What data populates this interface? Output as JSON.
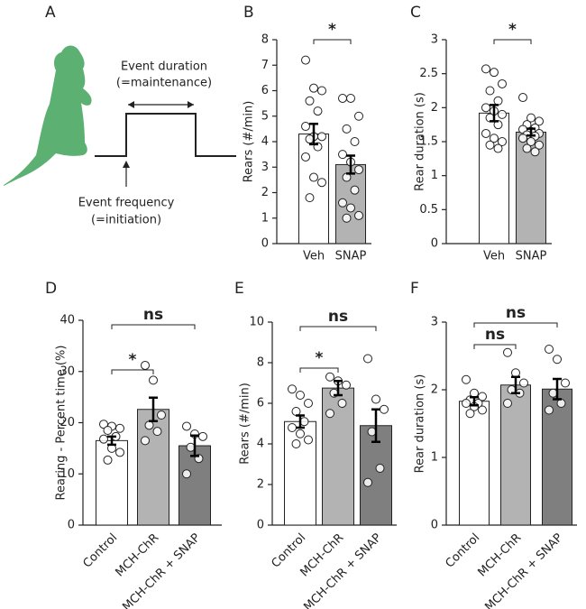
{
  "diagram": {
    "label": "A",
    "duration": "Event duration",
    "duration_note": "(=maintenance)",
    "frequency": "Event frequency",
    "frequency_note": "(=initiation)"
  },
  "chart_data": [
    {
      "type": "bar",
      "panel": "B",
      "ylabel": "Rears  (#/min)",
      "categories": [
        "Veh",
        "SNAP"
      ],
      "values": [
        4.3,
        3.1
      ],
      "errors": [
        0.4,
        0.35
      ],
      "colors": [
        "#ffffff",
        "#b3b3b3"
      ],
      "points": [
        [
          7.2,
          6.1,
          6.0,
          5.6,
          5.2,
          4.6,
          4.2,
          4.2,
          4.1,
          3.8,
          3.4,
          2.6,
          2.4,
          1.8
        ],
        [
          5.7,
          5.7,
          5.0,
          4.5,
          4.0,
          3.5,
          3.2,
          2.9,
          2.6,
          2.1,
          1.6,
          1.4,
          1.1,
          1.0
        ]
      ],
      "ylim": [
        0,
        8
      ],
      "yticks": [
        0,
        1,
        2,
        3,
        4,
        5,
        6,
        7,
        8
      ],
      "significance": [
        {
          "from": 0,
          "to": 1,
          "label": "*"
        }
      ]
    },
    {
      "type": "bar",
      "panel": "C",
      "ylabel": "Rear duration (s)",
      "categories": [
        "Veh",
        "SNAP"
      ],
      "values": [
        1.92,
        1.64
      ],
      "errors": [
        0.12,
        0.05
      ],
      "colors": [
        "#ffffff",
        "#b3b3b3"
      ],
      "points": [
        [
          2.57,
          2.52,
          2.35,
          2.25,
          2.1,
          2.0,
          1.95,
          1.9,
          1.85,
          1.75,
          1.62,
          1.55,
          1.5,
          1.45,
          1.4
        ],
        [
          2.15,
          1.85,
          1.8,
          1.75,
          1.7,
          1.68,
          1.65,
          1.62,
          1.6,
          1.58,
          1.55,
          1.5,
          1.45,
          1.4,
          1.35
        ]
      ],
      "ylim": [
        0,
        3
      ],
      "yticks": [
        0,
        0.5,
        1,
        1.5,
        2,
        2.5,
        3
      ],
      "significance": [
        {
          "from": 0,
          "to": 1,
          "label": "*"
        }
      ]
    },
    {
      "type": "bar",
      "panel": "D",
      "ylabel": "Rearing - Percent time (%)",
      "categories": [
        "Control",
        "MCH-ChR",
        "MCH-ChR + SNAP"
      ],
      "values": [
        16.5,
        22.6,
        15.5
      ],
      "errors": [
        0.8,
        2.3,
        2.0
      ],
      "colors": [
        "#ffffff",
        "#b3b3b3",
        "#7f7f7f"
      ],
      "points": [
        [
          19.7,
          19.3,
          18.9,
          18.5,
          17.3,
          16.8,
          15.0,
          14.2,
          12.7
        ],
        [
          31.2,
          28.3,
          21.5,
          19.5,
          18.3,
          16.5
        ],
        [
          19.3,
          17.8,
          17.3,
          15.2,
          13.0,
          10.0
        ]
      ],
      "ylim": [
        0,
        40
      ],
      "yticks": [
        0,
        10,
        20,
        30,
        40
      ],
      "significance": [
        {
          "from": 0,
          "to": 1,
          "label": "*"
        },
        {
          "from": 0,
          "to": 2,
          "label": "ns"
        }
      ]
    },
    {
      "type": "bar",
      "panel": "E",
      "ylabel": "Rears (#/min)",
      "categories": [
        "Control",
        "MCH-ChR",
        "MCH-ChR + SNAP"
      ],
      "values": [
        5.1,
        6.75,
        4.9
      ],
      "errors": [
        0.3,
        0.35,
        0.8
      ],
      "colors": [
        "#ffffff",
        "#b3b3b3",
        "#7f7f7f"
      ],
      "points": [
        [
          6.7,
          6.4,
          6.0,
          5.6,
          5.1,
          4.8,
          4.5,
          4.2,
          4.0
        ],
        [
          7.3,
          7.1,
          6.9,
          6.5,
          6.0,
          5.5
        ],
        [
          8.2,
          6.2,
          5.7,
          4.6,
          2.8,
          2.1
        ]
      ],
      "ylim": [
        0,
        10
      ],
      "yticks": [
        0,
        2,
        4,
        6,
        8,
        10
      ],
      "significance": [
        {
          "from": 0,
          "to": 1,
          "label": "*"
        },
        {
          "from": 0,
          "to": 2,
          "label": "ns"
        }
      ]
    },
    {
      "type": "bar",
      "panel": "F",
      "ylabel": "Rear duration (s)",
      "categories": [
        "Control",
        "MCH-ChR",
        "MCH-ChR + SNAP"
      ],
      "values": [
        1.83,
        2.07,
        2.01
      ],
      "errors": [
        0.06,
        0.12,
        0.15
      ],
      "colors": [
        "#ffffff",
        "#b3b3b3",
        "#7f7f7f"
      ],
      "points": [
        [
          2.15,
          1.95,
          1.9,
          1.85,
          1.8,
          1.8,
          1.75,
          1.7,
          1.65
        ],
        [
          2.55,
          2.25,
          2.1,
          2.0,
          1.95,
          1.8
        ],
        [
          2.6,
          2.45,
          2.1,
          1.95,
          1.8,
          1.7
        ]
      ],
      "ylim": [
        0,
        3
      ],
      "yticks": [
        0,
        1,
        2,
        3
      ],
      "significance": [
        {
          "from": 0,
          "to": 1,
          "label": "ns"
        },
        {
          "from": 0,
          "to": 2,
          "label": "ns"
        }
      ]
    }
  ]
}
